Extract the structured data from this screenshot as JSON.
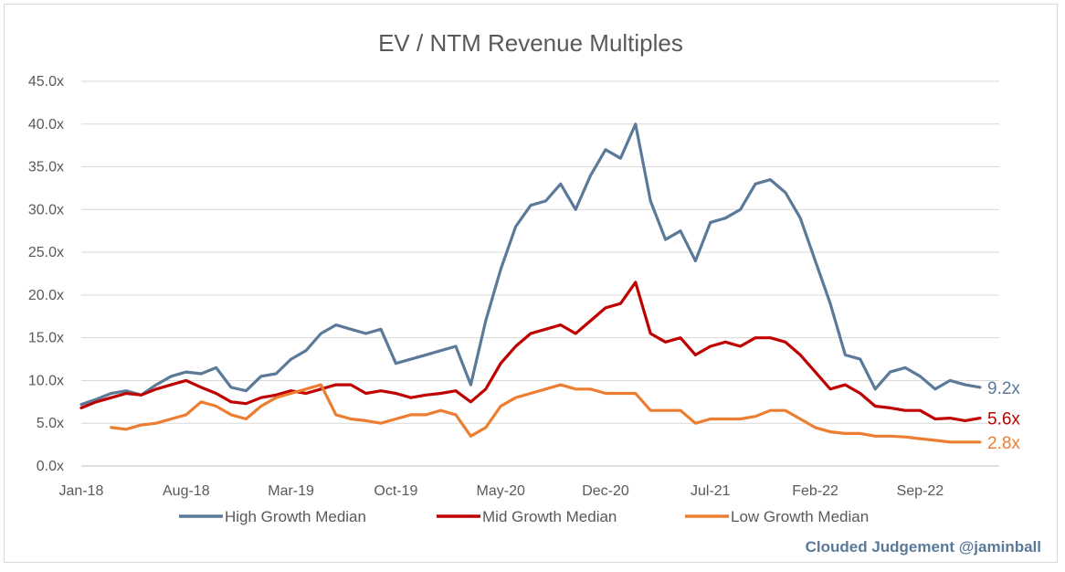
{
  "chart_data": {
    "type": "line",
    "title": "EV / NTM Revenue Multiples",
    "xlabel": "",
    "ylabel": "",
    "ylim": [
      0,
      45
    ],
    "y_ticks": [
      "0.0x",
      "5.0x",
      "10.0x",
      "15.0x",
      "20.0x",
      "25.0x",
      "30.0x",
      "35.0x",
      "40.0x",
      "45.0x"
    ],
    "x_ticks": [
      "Jan-18",
      "Aug-18",
      "Mar-19",
      "Oct-19",
      "May-20",
      "Dec-20",
      "Jul-21",
      "Feb-22",
      "Sep-22"
    ],
    "grid": "horizontal",
    "legend_position": "bottom",
    "credit": "Clouded Judgement @jaminball",
    "x": [
      "2018-01",
      "2018-02",
      "2018-03",
      "2018-04",
      "2018-05",
      "2018-06",
      "2018-07",
      "2018-08",
      "2018-09",
      "2018-10",
      "2018-11",
      "2018-12",
      "2019-01",
      "2019-02",
      "2019-03",
      "2019-04",
      "2019-05",
      "2019-06",
      "2019-07",
      "2019-08",
      "2019-09",
      "2019-10",
      "2019-11",
      "2019-12",
      "2020-01",
      "2020-02",
      "2020-03",
      "2020-04",
      "2020-05",
      "2020-06",
      "2020-07",
      "2020-08",
      "2020-09",
      "2020-10",
      "2020-11",
      "2020-12",
      "2021-01",
      "2021-02",
      "2021-03",
      "2021-04",
      "2021-05",
      "2021-06",
      "2021-07",
      "2021-08",
      "2021-09",
      "2021-10",
      "2021-11",
      "2021-12",
      "2022-01",
      "2022-02",
      "2022-03",
      "2022-04",
      "2022-05",
      "2022-06",
      "2022-07",
      "2022-08",
      "2022-09",
      "2022-10",
      "2022-11",
      "2022-12",
      "2023-01"
    ],
    "series": [
      {
        "name": "High Growth Median",
        "color": "#5b7a99",
        "end_label": "9.2x",
        "values": [
          7.2,
          7.8,
          8.5,
          8.8,
          8.3,
          9.5,
          10.5,
          11,
          10.8,
          11.5,
          9.2,
          8.8,
          10.5,
          10.8,
          12.5,
          13.5,
          15.5,
          16.5,
          16,
          15.5,
          16,
          12,
          12.5,
          13,
          13.5,
          14,
          9.5,
          17,
          23,
          28,
          30.5,
          31,
          33,
          30,
          34,
          37,
          36,
          40,
          31,
          26.5,
          27.5,
          24,
          28.5,
          29,
          30,
          33,
          33.5,
          32,
          29,
          24,
          19,
          13,
          12.5,
          9,
          11,
          11.5,
          10.5,
          9,
          10,
          9.5,
          9.2
        ]
      },
      {
        "name": "Mid Growth Median",
        "color": "#c00000",
        "end_label": "5.6x",
        "values": [
          6.8,
          7.5,
          8,
          8.5,
          8.3,
          9,
          9.5,
          10,
          9.2,
          8.5,
          7.5,
          7.3,
          8,
          8.3,
          8.8,
          8.5,
          9,
          9.5,
          9.5,
          8.5,
          8.8,
          8.5,
          8,
          8.3,
          8.5,
          8.8,
          7.5,
          9,
          12,
          14,
          15.5,
          16,
          16.5,
          15.5,
          17,
          18.5,
          19,
          21.5,
          15.5,
          14.5,
          15,
          13,
          14,
          14.5,
          14,
          15,
          15,
          14.5,
          13,
          11,
          9,
          9.5,
          8.5,
          7,
          6.8,
          6.5,
          6.5,
          5.5,
          5.6,
          5.3,
          5.6
        ]
      },
      {
        "name": "Low Growth Median",
        "color": "#ed7d31",
        "end_label": "2.8x",
        "values": [
          null,
          null,
          4.5,
          4.3,
          4.8,
          5,
          5.5,
          6,
          7.5,
          7,
          6,
          5.5,
          7,
          8,
          8.5,
          9,
          9.5,
          6,
          5.5,
          5.3,
          5,
          5.5,
          6,
          6,
          6.5,
          6,
          3.5,
          4.5,
          7,
          8,
          8.5,
          9,
          9.5,
          9,
          9,
          8.5,
          8.5,
          8.5,
          6.5,
          6.5,
          6.5,
          5,
          5.5,
          5.5,
          5.5,
          5.8,
          6.5,
          6.5,
          5.5,
          4.5,
          4,
          3.8,
          3.8,
          3.5,
          3.5,
          3.4,
          3.2,
          3,
          2.8,
          2.8,
          2.8
        ]
      }
    ]
  }
}
